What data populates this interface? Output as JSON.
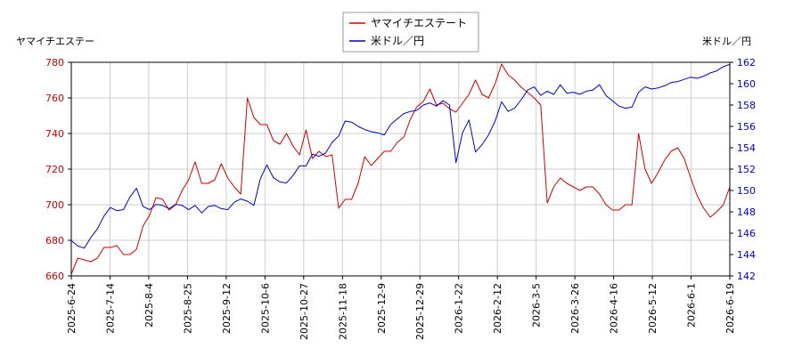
{
  "chart_data": {
    "type": "line",
    "y_left_label": "ヤマイチエステー",
    "y_right_label": "米ドル／円",
    "legend_position": "top-center",
    "grid": true,
    "x_ticks": [
      "2025-6-24",
      "2025-7-14",
      "2025-8-4",
      "2025-8-25",
      "2025-9-12",
      "2025-10-6",
      "2025-10-27",
      "2025-11-18",
      "2025-12-9",
      "2025-12-29",
      "2026-1-22",
      "2026-2-12",
      "2026-3-5",
      "2026-3-26",
      "2026-4-16",
      "2026-5-12",
      "2026-6-1",
      "2026-6-19"
    ],
    "y_left_ticks": [
      "660",
      "680",
      "700",
      "720",
      "740",
      "760",
      "780"
    ],
    "y_right_ticks": [
      "142",
      "144",
      "146",
      "148",
      "150",
      "152",
      "154",
      "156",
      "158",
      "160",
      "162"
    ],
    "y_left_range": [
      660,
      780
    ],
    "y_right_range": [
      142,
      162
    ],
    "series": [
      {
        "name": "ヤマイチエステート",
        "axis": "left",
        "color": "#cc0000",
        "values": [
          661,
          670,
          669,
          668,
          670,
          676,
          676,
          677,
          672,
          672,
          675,
          688,
          694,
          704,
          703,
          697,
          700,
          708,
          714,
          724,
          712,
          712,
          714,
          723,
          715,
          710,
          706,
          760,
          749,
          745,
          745,
          736,
          734,
          740,
          733,
          728,
          742,
          726,
          730,
          727,
          728,
          698,
          703,
          703,
          712,
          727,
          722,
          726,
          730,
          730,
          735,
          738,
          748,
          755,
          758,
          765,
          756,
          757,
          754,
          752,
          757,
          762,
          770,
          762,
          760,
          768,
          779,
          773,
          770,
          766,
          763,
          760,
          756,
          701,
          710,
          715,
          712,
          710,
          708,
          710,
          710,
          706,
          700,
          697,
          697,
          700,
          700,
          740,
          720,
          712,
          718,
          725,
          730,
          732,
          726,
          715,
          705,
          698,
          693,
          696,
          700,
          710
        ]
      },
      {
        "name": "米ドル／円",
        "axis": "right",
        "color": "#0000cc",
        "values": [
          145.3,
          144.8,
          144.6,
          145.6,
          146.4,
          147.6,
          148.4,
          148.1,
          148.2,
          149.4,
          150.2,
          148.5,
          148.2,
          148.7,
          148.6,
          148.3,
          148.7,
          148.6,
          148.2,
          148.6,
          147.9,
          148.5,
          148.6,
          148.3,
          148.2,
          148.9,
          149.2,
          149.0,
          148.6,
          151.1,
          152.4,
          151.2,
          150.8,
          150.7,
          151.4,
          152.3,
          152.3,
          153.4,
          153.2,
          153.5,
          154.5,
          155.1,
          156.5,
          156.4,
          156.0,
          155.7,
          155.5,
          155.4,
          155.2,
          156.2,
          156.7,
          157.2,
          157.4,
          157.5,
          158.0,
          158.2,
          157.9,
          158.4,
          158.0,
          152.6,
          155.4,
          156.6,
          153.6,
          154.3,
          155.2,
          156.5,
          158.3,
          157.4,
          157.7,
          158.5,
          159.4,
          159.7,
          158.9,
          159.3,
          159.0,
          159.9,
          159.1,
          159.2,
          159.0,
          159.3,
          159.4,
          159.9,
          158.9,
          158.4,
          157.9,
          157.7,
          157.8,
          159.2,
          159.7,
          159.5,
          159.6,
          159.8,
          160.1,
          160.2,
          160.4,
          160.6,
          160.5,
          160.7,
          161.0,
          161.2,
          161.6,
          161.8
        ]
      }
    ]
  }
}
